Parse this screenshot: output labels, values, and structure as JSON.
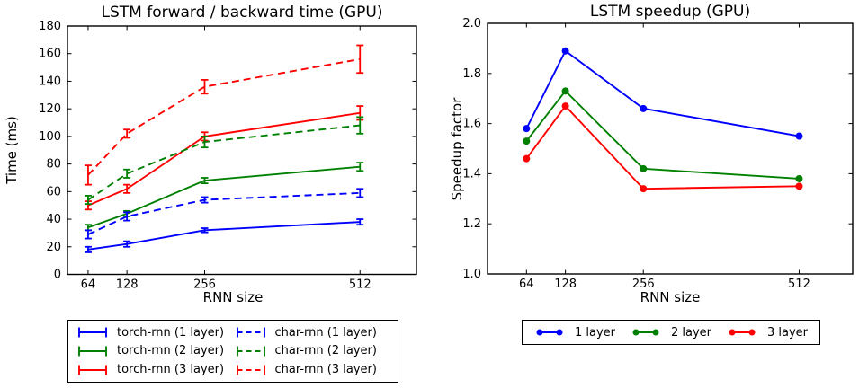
{
  "chart_data": [
    {
      "type": "line",
      "title": "LSTM forward / backward time (GPU)",
      "xlabel": "RNN size",
      "ylabel": "Time (ms)",
      "x": [
        64,
        128,
        256,
        512
      ],
      "xtick_labels": [
        "64",
        "128",
        "256",
        "512"
      ],
      "ytick_values": [
        0,
        20,
        40,
        60,
        80,
        100,
        120,
        140,
        160,
        180
      ],
      "ytick_labels": [
        "0",
        "20",
        "40",
        "60",
        "80",
        "100",
        "120",
        "140",
        "160",
        "180"
      ],
      "xlim": [
        30,
        605
      ],
      "ylim": [
        0,
        180
      ],
      "grid": false,
      "legend_position": "below-axes",
      "legend_columns": 2,
      "series": [
        {
          "name": "torch-rnn (1 layer)",
          "color": "#0000ff",
          "style": "solid",
          "values": [
            18,
            22,
            32,
            38
          ],
          "yerr": [
            2,
            2,
            1.5,
            2
          ]
        },
        {
          "name": "torch-rnn (2 layer)",
          "color": "#008000",
          "style": "solid",
          "values": [
            34,
            44,
            68,
            78
          ],
          "yerr": [
            2,
            2,
            2,
            3
          ]
        },
        {
          "name": "torch-rnn (3 layer)",
          "color": "#ff0000",
          "style": "solid",
          "values": [
            50,
            62,
            100,
            117
          ],
          "yerr": [
            3,
            3,
            3,
            5
          ]
        },
        {
          "name": "char-rnn (1 layer)",
          "color": "#0000ff",
          "style": "dashed",
          "values": [
            29,
            42,
            54,
            59
          ],
          "yerr": [
            3,
            3,
            2,
            3
          ]
        },
        {
          "name": "char-rnn (2 layer)",
          "color": "#008000",
          "style": "dashed",
          "values": [
            54,
            73,
            96,
            108
          ],
          "yerr": [
            3,
            3,
            4,
            6
          ]
        },
        {
          "name": "char-rnn (3 layer)",
          "color": "#ff0000",
          "style": "dashed",
          "values": [
            72,
            102,
            136,
            156
          ],
          "yerr": [
            7,
            3,
            5,
            10
          ]
        }
      ]
    },
    {
      "type": "line",
      "title": "LSTM speedup (GPU)",
      "xlabel": "RNN size",
      "ylabel": "Speedup factor",
      "x": [
        64,
        128,
        256,
        512
      ],
      "xtick_labels": [
        "64",
        "128",
        "256",
        "512"
      ],
      "ytick_values": [
        1.0,
        1.2,
        1.4,
        1.6,
        1.8,
        2.0
      ],
      "ytick_labels": [
        "1.0",
        "1.2",
        "1.4",
        "1.6",
        "1.8",
        "2.0"
      ],
      "xlim": [
        0,
        600
      ],
      "ylim": [
        1.0,
        2.0
      ],
      "grid": false,
      "legend_position": "below-axes",
      "legend_columns": 3,
      "series": [
        {
          "name": "1 layer",
          "color": "#0000ff",
          "style": "solid",
          "marker": "circle",
          "values": [
            1.58,
            1.89,
            1.66,
            1.55
          ]
        },
        {
          "name": "2 layer",
          "color": "#008000",
          "style": "solid",
          "marker": "circle",
          "values": [
            1.53,
            1.73,
            1.42,
            1.38
          ]
        },
        {
          "name": "3 layer",
          "color": "#ff0000",
          "style": "solid",
          "marker": "circle",
          "values": [
            1.46,
            1.67,
            1.34,
            1.35
          ]
        }
      ]
    }
  ]
}
